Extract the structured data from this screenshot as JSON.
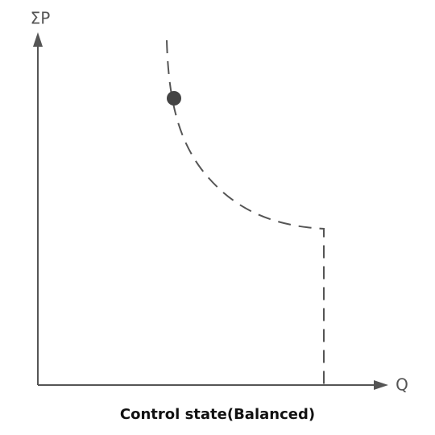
{
  "diagram": {
    "y_axis_label": "ΣP",
    "x_axis_label": "Q",
    "caption": "Control state(Balanced)"
  }
}
